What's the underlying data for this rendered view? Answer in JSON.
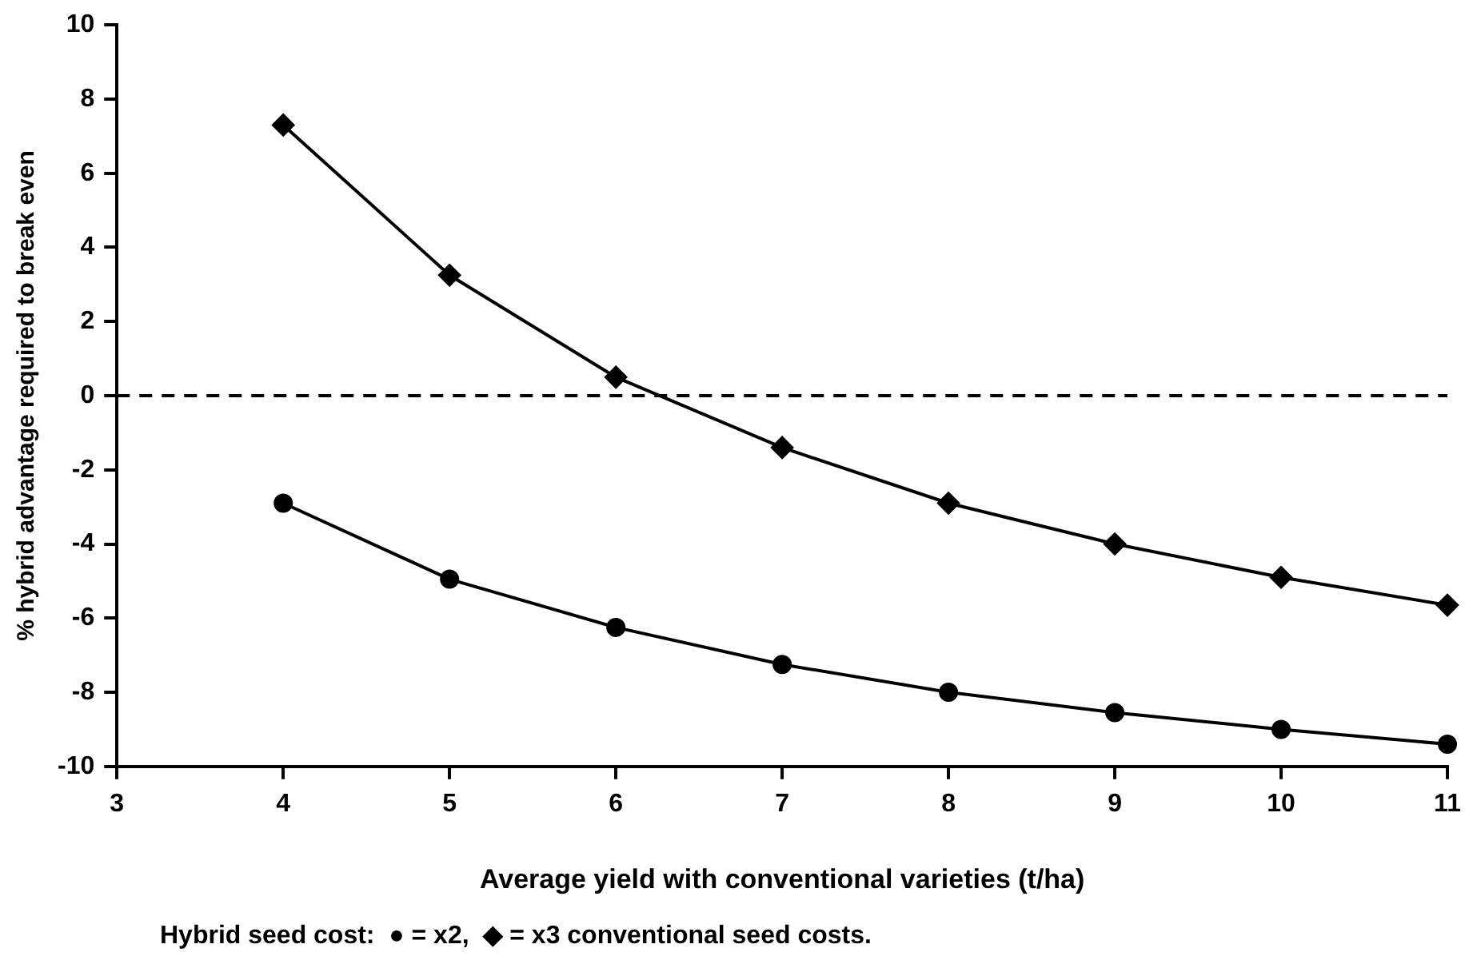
{
  "chart_data": {
    "type": "line",
    "xlabel": "Average yield with conventional varieties (t/ha)",
    "ylabel": "% hybrid advantage required to break even",
    "x": [
      4,
      5,
      6,
      7,
      8,
      9,
      10,
      11
    ],
    "series": [
      {
        "color": "#000000",
        "marker": "circle",
        "values": [
          -2.9,
          -4.95,
          -6.25,
          -7.25,
          -8.0,
          -8.55,
          -9.0,
          -9.4
        ]
      },
      {
        "color": "#000000",
        "marker": "diamond",
        "values": [
          7.3,
          3.25,
          0.5,
          -1.4,
          -2.9,
          -4.0,
          -4.9,
          -5.65
        ]
      }
    ],
    "xlim": [
      3,
      11
    ],
    "xticks": [
      3,
      4,
      5,
      6,
      7,
      8,
      9,
      10,
      11
    ],
    "ylim": [
      -10,
      10
    ],
    "yticks": [
      -10,
      -8,
      -6,
      -4,
      -2,
      0,
      2,
      4,
      6,
      8,
      10
    ],
    "ref_lines": [
      {
        "axis": "y",
        "value": 0,
        "line_style": "dashed",
        "color": "#000000"
      }
    ],
    "annotations": [
      "Hybrid seed cost:  ● = x2,  ◆ = x3 conventional seed costs."
    ],
    "grid": false,
    "legend": false,
    "line_style": "solid"
  }
}
